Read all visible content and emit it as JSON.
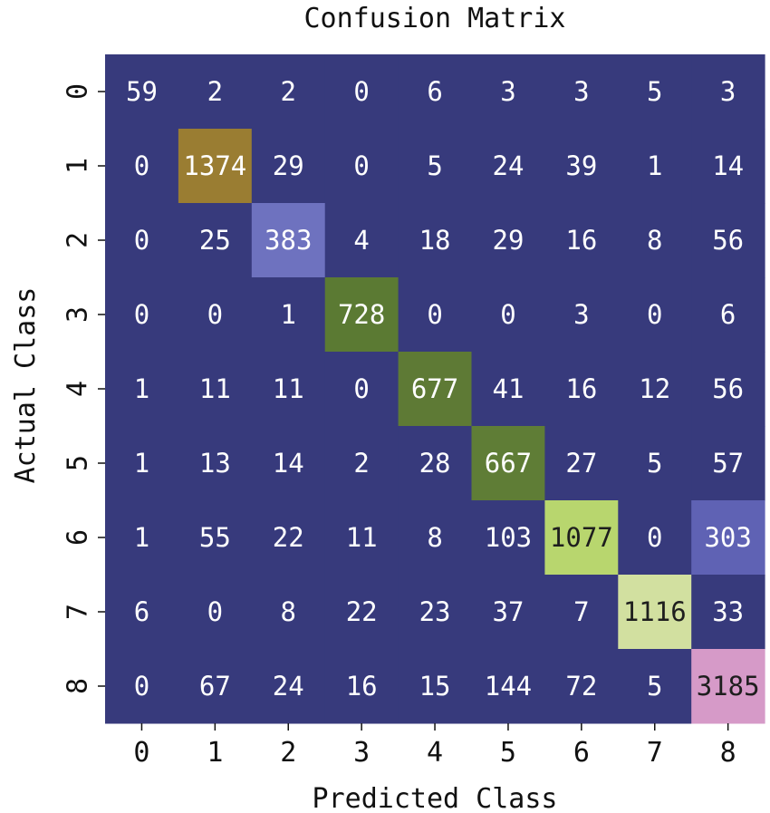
{
  "chart_data": {
    "type": "heatmap",
    "title": "Confusion Matrix",
    "xlabel": "Predicted Class",
    "ylabel": "Actual Class",
    "x_categories": [
      "0",
      "1",
      "2",
      "3",
      "4",
      "5",
      "6",
      "7",
      "8"
    ],
    "y_categories": [
      "0",
      "1",
      "2",
      "3",
      "4",
      "5",
      "6",
      "7",
      "8"
    ],
    "matrix": [
      [
        59,
        2,
        2,
        0,
        6,
        3,
        3,
        5,
        3
      ],
      [
        0,
        1374,
        29,
        0,
        5,
        24,
        39,
        1,
        14
      ],
      [
        0,
        25,
        383,
        4,
        18,
        29,
        16,
        8,
        56
      ],
      [
        0,
        0,
        1,
        728,
        0,
        0,
        3,
        0,
        6
      ],
      [
        1,
        11,
        11,
        0,
        677,
        41,
        16,
        12,
        56
      ],
      [
        1,
        13,
        14,
        2,
        28,
        667,
        27,
        5,
        57
      ],
      [
        1,
        55,
        22,
        11,
        8,
        103,
        1077,
        0,
        303
      ],
      [
        6,
        0,
        8,
        22,
        23,
        37,
        7,
        1116,
        33
      ],
      [
        0,
        67,
        24,
        16,
        15,
        144,
        72,
        5,
        3185
      ]
    ],
    "highlight_colors": {
      "background": "#373a7c",
      "light_text": "#ffffff",
      "dark_text": "#1e1e1e",
      "cell_1_1": "#9a7d32",
      "cell_2_2": "#6e72bf",
      "cell_3_3": "#5b7a33",
      "cell_4_4": "#5e7a35",
      "cell_5_5": "#5f7d36",
      "cell_6_6": "#b8d66e",
      "cell_6_8": "#5f62b4",
      "cell_7_7": "#d2e0a0",
      "cell_8_8": "#d69ac8"
    }
  }
}
